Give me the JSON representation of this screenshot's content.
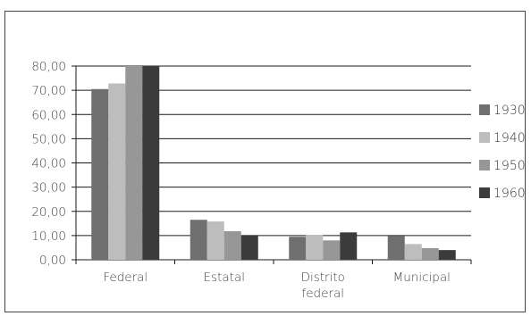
{
  "chart_data": {
    "type": "bar",
    "title": "",
    "xlabel": "",
    "ylabel": "",
    "categories": [
      [
        "Federal"
      ],
      [
        "Estatal"
      ],
      [
        "Distrito",
        "federal"
      ],
      [
        "Municipal"
      ]
    ],
    "series": [
      {
        "name": "1930",
        "color": "#6f6f6f",
        "values": [
          70.5,
          16.5,
          9.5,
          9.8
        ]
      },
      {
        "name": "1940",
        "color": "#bdbdbd",
        "values": [
          72.8,
          15.8,
          10.2,
          6.5
        ]
      },
      {
        "name": "1950",
        "color": "#979797",
        "values": [
          80.0,
          11.8,
          8.0,
          4.8
        ]
      },
      {
        "name": "1960",
        "color": "#3b3b3b",
        "values": [
          80.0,
          10.0,
          11.3,
          4.0
        ]
      }
    ],
    "ylim": [
      0,
      80
    ],
    "yticks": [
      "0,00",
      "10,00",
      "20,00",
      "30,00",
      "40,00",
      "50,00",
      "60,00",
      "70,00",
      "80,00"
    ],
    "grid": true,
    "legend_position": "right"
  }
}
